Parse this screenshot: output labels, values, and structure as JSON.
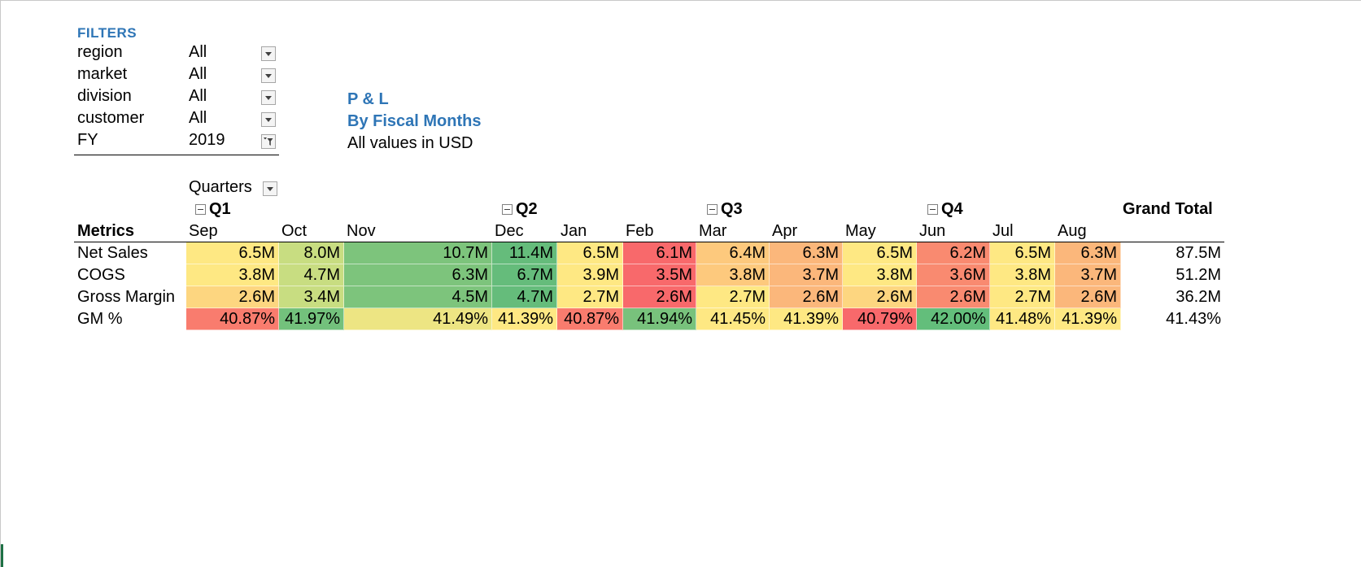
{
  "filters": {
    "title": "FILTERS",
    "rows": [
      {
        "label": "region",
        "value": "All",
        "icon": "dropdown-arrow-icon"
      },
      {
        "label": "market",
        "value": "All",
        "icon": "dropdown-arrow-icon"
      },
      {
        "label": "division",
        "value": "All",
        "icon": "dropdown-arrow-icon"
      },
      {
        "label": "customer",
        "value": "All",
        "icon": "dropdown-arrow-icon"
      },
      {
        "label": "FY",
        "value": "2019",
        "icon": "filter-funnel-icon"
      }
    ]
  },
  "report": {
    "title": "P & L",
    "subtitle": "By Fiscal Months",
    "note": "All values in USD"
  },
  "pivot": {
    "quarters_label": "Quarters",
    "grand_total_label": "Grand Total",
    "metrics_label": "Metrics",
    "quarters": [
      "Q1",
      "Q2",
      "Q3",
      "Q4"
    ],
    "months": [
      "Sep",
      "Oct",
      "Nov",
      "Dec",
      "Jan",
      "Feb",
      "Mar",
      "Apr",
      "May",
      "Jun",
      "Jul",
      "Aug"
    ],
    "rows": [
      {
        "label": "Net Sales",
        "values": [
          "6.5M",
          "8.0M",
          "10.7M",
          "11.4M",
          "6.5M",
          "6.1M",
          "6.4M",
          "6.3M",
          "6.5M",
          "6.2M",
          "6.5M",
          "6.3M"
        ],
        "colors": [
          "#fee883",
          "#c8dd81",
          "#7dc47c",
          "#65bc7b",
          "#fee883",
          "#f8696b",
          "#fdc97d",
          "#fbb77b",
          "#fee883",
          "#f98a70",
          "#fee883",
          "#fbb77b"
        ],
        "total": "87.5M"
      },
      {
        "label": "COGS",
        "values": [
          "3.8M",
          "4.7M",
          "6.3M",
          "6.7M",
          "3.9M",
          "3.5M",
          "3.8M",
          "3.7M",
          "3.8M",
          "3.6M",
          "3.8M",
          "3.7M"
        ],
        "colors": [
          "#fee883",
          "#c8dd81",
          "#7dc47c",
          "#65bc7b",
          "#fee883",
          "#f8696b",
          "#fdc97d",
          "#fbb77b",
          "#fee883",
          "#f98a70",
          "#fee883",
          "#fbb77b"
        ],
        "total": "51.2M"
      },
      {
        "label": "Gross Margin",
        "values": [
          "2.6M",
          "3.4M",
          "4.5M",
          "4.7M",
          "2.7M",
          "2.6M",
          "2.7M",
          "2.6M",
          "2.6M",
          "2.6M",
          "2.7M",
          "2.6M"
        ],
        "colors": [
          "#fdd680",
          "#c8dd81",
          "#7dc47c",
          "#65bc7b",
          "#fee883",
          "#f8696b",
          "#fee883",
          "#fbb77b",
          "#fdd680",
          "#f98a70",
          "#fee883",
          "#fbb77b"
        ],
        "total": "36.2M"
      },
      {
        "label": "GM %",
        "values": [
          "40.87%",
          "41.97%",
          "41.49%",
          "41.39%",
          "40.87%",
          "41.94%",
          "41.45%",
          "41.39%",
          "40.79%",
          "42.00%",
          "41.48%",
          "41.39%"
        ],
        "colors": [
          "#f97c6e",
          "#73c17c",
          "#ede583",
          "#fee883",
          "#f97c6e",
          "#78c27c",
          "#fee883",
          "#fee883",
          "#f8696b",
          "#63be7b",
          "#fee883",
          "#fee883"
        ],
        "total": "41.43%"
      }
    ]
  }
}
